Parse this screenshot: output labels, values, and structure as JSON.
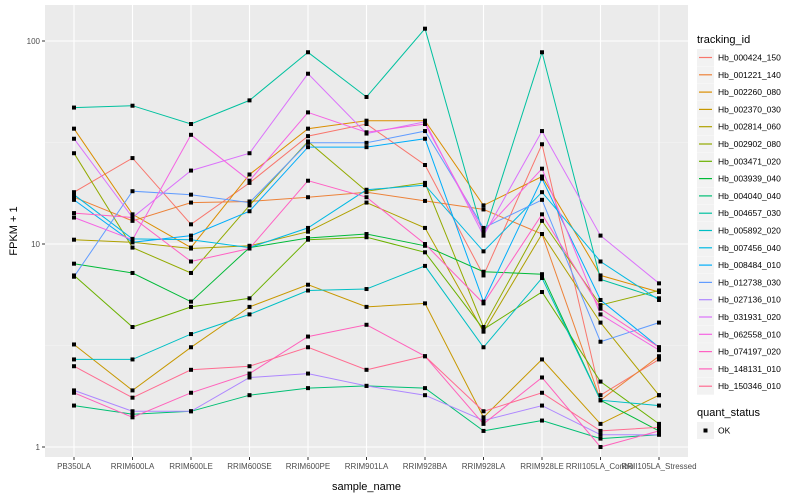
{
  "chart_data": {
    "type": "line",
    "title": "",
    "xlabel": "sample_name",
    "ylabel": "FPKM + 1",
    "yscale": "log10",
    "ylim": [
      0.8,
      140
    ],
    "yticks": [
      1,
      10,
      100
    ],
    "ytick_labels": [
      "1",
      "10",
      "100"
    ],
    "grid": true,
    "categories": [
      "PB350LA",
      "RRIM600LA",
      "RRIM600LE",
      "RRIM600SE",
      "RRIM600PE",
      "RRIM901LA",
      "RRIM928BA",
      "RRIM928LA",
      "RRIM928LE",
      "RRII105LA_Control",
      "RRII105LA_Stressed"
    ],
    "legend": {
      "title": "tracking_id",
      "placement": "right",
      "shape_title": "quant_status",
      "shape_entries": [
        "OK"
      ]
    },
    "series": [
      {
        "name": "Hb_000424_150",
        "color": "#F8766D",
        "values": [
          18.0,
          26.5,
          12.5,
          20.0,
          34.0,
          39.0,
          24.5,
          7.0,
          31.0,
          1.8,
          2.7
        ]
      },
      {
        "name": "Hb_001221_140",
        "color": "#EC8239",
        "values": [
          17.0,
          13.0,
          16.0,
          16.2,
          17.0,
          18.0,
          16.3,
          14.8,
          11.2,
          1.7,
          2.8
        ]
      },
      {
        "name": "Hb_002260_080",
        "color": "#DB8E00",
        "values": [
          37.0,
          14.0,
          9.6,
          22.0,
          37.0,
          40.5,
          40.5,
          15.5,
          21.5,
          7.0,
          5.8
        ]
      },
      {
        "name": "Hb_002370_030",
        "color": "#C79800",
        "values": [
          3.2,
          1.9,
          3.1,
          4.9,
          6.3,
          4.9,
          5.1,
          1.4,
          2.7,
          1.3,
          1.8
        ]
      },
      {
        "name": "Hb_002814_060",
        "color": "#AFA100",
        "values": [
          10.5,
          10.2,
          9.5,
          9.8,
          11.5,
          16.0,
          12.0,
          3.7,
          11.2,
          4.1,
          1.8
        ]
      },
      {
        "name": "Hb_002902_080",
        "color": "#93AA00",
        "values": [
          28.0,
          9.6,
          7.2,
          15.5,
          32.0,
          18.2,
          20.0,
          3.9,
          13.0,
          5.0,
          5.9
        ]
      },
      {
        "name": "Hb_003471_020",
        "color": "#6BB100",
        "values": [
          7.0,
          3.9,
          4.9,
          5.4,
          10.5,
          10.8,
          9.1,
          3.8,
          5.8,
          2.1,
          1.3
        ]
      },
      {
        "name": "Hb_003939_040",
        "color": "#00BA38",
        "values": [
          8.0,
          7.2,
          5.2,
          9.6,
          10.7,
          11.2,
          9.8,
          7.3,
          7.1,
          1.7,
          1.2
        ]
      },
      {
        "name": "Hb_004040_040",
        "color": "#00BF74",
        "values": [
          1.6,
          1.45,
          1.5,
          1.8,
          1.95,
          2.0,
          1.95,
          1.2,
          1.35,
          1.1,
          1.15
        ]
      },
      {
        "name": "Hb_004657_030",
        "color": "#00C19F",
        "values": [
          47.0,
          48.0,
          39.0,
          51.0,
          88.0,
          53.0,
          115.0,
          11.0,
          88.0,
          6.7,
          5.4
        ]
      },
      {
        "name": "Hb_005892_020",
        "color": "#00BFC4",
        "values": [
          2.7,
          2.7,
          3.6,
          4.5,
          5.9,
          6.0,
          7.8,
          3.1,
          6.8,
          1.7,
          1.6
        ]
      },
      {
        "name": "Hb_007456_040",
        "color": "#00B9E3",
        "values": [
          17.5,
          10.6,
          10.5,
          9.6,
          12.0,
          18.5,
          19.5,
          9.2,
          18.0,
          8.2,
          5.3
        ]
      },
      {
        "name": "Hb_008484_010",
        "color": "#00ADFA",
        "values": [
          16.5,
          10.2,
          11.0,
          14.5,
          30.0,
          30.0,
          33.0,
          5.2,
          21.0,
          5.3,
          3.1
        ]
      },
      {
        "name": "Hb_012738_030",
        "color": "#619CFF",
        "values": [
          6.9,
          18.2,
          17.5,
          16.0,
          31.5,
          31.5,
          36.0,
          12.0,
          16.5,
          3.3,
          4.1
        ]
      },
      {
        "name": "Hb_027136_010",
        "color": "#AE87FF",
        "values": [
          1.9,
          1.5,
          1.5,
          2.2,
          2.3,
          2.0,
          1.8,
          1.35,
          1.6,
          1.15,
          1.15
        ]
      },
      {
        "name": "Hb_031931_020",
        "color": "#DB72FB",
        "values": [
          33.0,
          13.5,
          23.0,
          28.0,
          69.0,
          35.0,
          40.0,
          11.0,
          36.0,
          11.0,
          6.4
        ]
      },
      {
        "name": "Hb_062558_010",
        "color": "#F564E3",
        "values": [
          13.5,
          10.5,
          34.5,
          20.5,
          44.5,
          35.5,
          39.0,
          11.5,
          23.5,
          4.5,
          3.0
        ]
      },
      {
        "name": "Hb_074197_020",
        "color": "#FF61C3",
        "values": [
          14.2,
          13.5,
          8.2,
          9.5,
          20.5,
          17.0,
          10.0,
          5.1,
          14.0,
          4.8,
          3.1
        ]
      },
      {
        "name": "Hb_148131_010",
        "color": "#FF62BC",
        "values": [
          1.85,
          1.4,
          1.85,
          2.3,
          3.5,
          4.0,
          2.8,
          1.3,
          2.2,
          1.0,
          1.2
        ]
      },
      {
        "name": "Hb_150346_010",
        "color": "#FF6C91",
        "values": [
          2.5,
          1.75,
          2.4,
          2.5,
          3.1,
          2.4,
          2.8,
          1.5,
          1.85,
          1.2,
          1.25
        ]
      }
    ]
  }
}
